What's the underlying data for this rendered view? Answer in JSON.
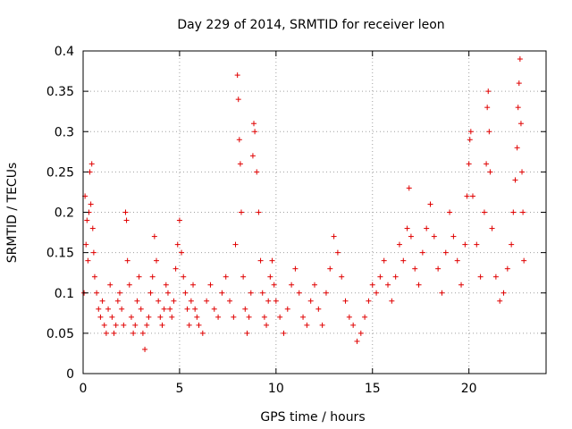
{
  "chart_data": {
    "type": "scatter",
    "title": "Day 229 of 2014, SRMTID for receiver leon",
    "xlabel": "GPS time / hours",
    "ylabel": "SRMTID / TECUs",
    "xlim": [
      0,
      24
    ],
    "ylim": [
      0,
      0.4
    ],
    "grid": true,
    "marker": "+",
    "marker_color": "#e00000",
    "x_ticks": [
      0,
      5,
      10,
      15,
      20
    ],
    "x_tick_labels": [
      "0",
      "5",
      "10",
      "15",
      "20"
    ],
    "y_ticks": [
      0,
      0.05,
      0.1,
      0.15,
      0.2,
      0.25,
      0.3,
      0.35,
      0.4
    ],
    "y_tick_labels": [
      "0",
      "0.05",
      "0.1",
      "0.15",
      "0.2",
      "0.25",
      "0.3",
      "0.35",
      "0.4"
    ],
    "series": [
      {
        "name": "SRMTID",
        "points": [
          [
            0.05,
            0.1
          ],
          [
            0.1,
            0.22
          ],
          [
            0.15,
            0.16
          ],
          [
            0.2,
            0.19
          ],
          [
            0.25,
            0.14
          ],
          [
            0.3,
            0.2
          ],
          [
            0.35,
            0.25
          ],
          [
            0.4,
            0.21
          ],
          [
            0.45,
            0.26
          ],
          [
            0.5,
            0.18
          ],
          [
            0.55,
            0.15
          ],
          [
            0.6,
            0.12
          ],
          [
            0.7,
            0.1
          ],
          [
            0.8,
            0.08
          ],
          [
            0.9,
            0.07
          ],
          [
            1.0,
            0.09
          ],
          [
            1.1,
            0.06
          ],
          [
            1.2,
            0.05
          ],
          [
            1.3,
            0.08
          ],
          [
            1.4,
            0.11
          ],
          [
            1.5,
            0.07
          ],
          [
            1.6,
            0.05
          ],
          [
            1.7,
            0.06
          ],
          [
            1.8,
            0.09
          ],
          [
            1.9,
            0.1
          ],
          [
            2.0,
            0.08
          ],
          [
            2.1,
            0.06
          ],
          [
            2.2,
            0.2
          ],
          [
            2.25,
            0.19
          ],
          [
            2.3,
            0.14
          ],
          [
            2.4,
            0.11
          ],
          [
            2.5,
            0.07
          ],
          [
            2.6,
            0.05
          ],
          [
            2.7,
            0.06
          ],
          [
            2.8,
            0.09
          ],
          [
            2.9,
            0.12
          ],
          [
            3.0,
            0.08
          ],
          [
            3.1,
            0.05
          ],
          [
            3.2,
            0.03
          ],
          [
            3.3,
            0.06
          ],
          [
            3.4,
            0.07
          ],
          [
            3.5,
            0.1
          ],
          [
            3.6,
            0.12
          ],
          [
            3.7,
            0.17
          ],
          [
            3.8,
            0.14
          ],
          [
            3.9,
            0.09
          ],
          [
            4.0,
            0.07
          ],
          [
            4.1,
            0.06
          ],
          [
            4.2,
            0.08
          ],
          [
            4.3,
            0.11
          ],
          [
            4.4,
            0.1
          ],
          [
            4.5,
            0.08
          ],
          [
            4.6,
            0.07
          ],
          [
            4.7,
            0.09
          ],
          [
            4.8,
            0.13
          ],
          [
            4.9,
            0.16
          ],
          [
            5.0,
            0.19
          ],
          [
            5.1,
            0.15
          ],
          [
            5.2,
            0.12
          ],
          [
            5.3,
            0.1
          ],
          [
            5.4,
            0.08
          ],
          [
            5.5,
            0.06
          ],
          [
            5.6,
            0.09
          ],
          [
            5.7,
            0.11
          ],
          [
            5.8,
            0.08
          ],
          [
            5.9,
            0.07
          ],
          [
            6.0,
            0.06
          ],
          [
            6.2,
            0.05
          ],
          [
            6.4,
            0.09
          ],
          [
            6.6,
            0.11
          ],
          [
            6.8,
            0.08
          ],
          [
            7.0,
            0.07
          ],
          [
            7.2,
            0.1
          ],
          [
            7.4,
            0.12
          ],
          [
            7.6,
            0.09
          ],
          [
            7.8,
            0.07
          ],
          [
            7.9,
            0.16
          ],
          [
            8.0,
            0.37
          ],
          [
            8.05,
            0.34
          ],
          [
            8.1,
            0.29
          ],
          [
            8.15,
            0.26
          ],
          [
            8.2,
            0.2
          ],
          [
            8.3,
            0.12
          ],
          [
            8.4,
            0.08
          ],
          [
            8.5,
            0.05
          ],
          [
            8.6,
            0.07
          ],
          [
            8.7,
            0.1
          ],
          [
            8.8,
            0.27
          ],
          [
            8.85,
            0.31
          ],
          [
            8.9,
            0.3
          ],
          [
            9.0,
            0.25
          ],
          [
            9.1,
            0.2
          ],
          [
            9.2,
            0.14
          ],
          [
            9.3,
            0.1
          ],
          [
            9.4,
            0.07
          ],
          [
            9.5,
            0.06
          ],
          [
            9.6,
            0.09
          ],
          [
            9.7,
            0.12
          ],
          [
            9.8,
            0.14
          ],
          [
            9.9,
            0.11
          ],
          [
            10.0,
            0.09
          ],
          [
            10.2,
            0.07
          ],
          [
            10.4,
            0.05
          ],
          [
            10.6,
            0.08
          ],
          [
            10.8,
            0.11
          ],
          [
            11.0,
            0.13
          ],
          [
            11.2,
            0.1
          ],
          [
            11.4,
            0.07
          ],
          [
            11.6,
            0.06
          ],
          [
            11.8,
            0.09
          ],
          [
            12.0,
            0.11
          ],
          [
            12.2,
            0.08
          ],
          [
            12.4,
            0.06
          ],
          [
            12.6,
            0.1
          ],
          [
            12.8,
            0.13
          ],
          [
            13.0,
            0.17
          ],
          [
            13.2,
            0.15
          ],
          [
            13.4,
            0.12
          ],
          [
            13.6,
            0.09
          ],
          [
            13.8,
            0.07
          ],
          [
            14.0,
            0.06
          ],
          [
            14.2,
            0.04
          ],
          [
            14.4,
            0.05
          ],
          [
            14.6,
            0.07
          ],
          [
            14.8,
            0.09
          ],
          [
            15.0,
            0.11
          ],
          [
            15.2,
            0.1
          ],
          [
            15.4,
            0.12
          ],
          [
            15.6,
            0.14
          ],
          [
            15.8,
            0.11
          ],
          [
            16.0,
            0.09
          ],
          [
            16.2,
            0.12
          ],
          [
            16.4,
            0.16
          ],
          [
            16.6,
            0.14
          ],
          [
            16.8,
            0.18
          ],
          [
            16.9,
            0.23
          ],
          [
            17.0,
            0.17
          ],
          [
            17.2,
            0.13
          ],
          [
            17.4,
            0.11
          ],
          [
            17.6,
            0.15
          ],
          [
            17.8,
            0.18
          ],
          [
            18.0,
            0.21
          ],
          [
            18.2,
            0.17
          ],
          [
            18.4,
            0.13
          ],
          [
            18.6,
            0.1
          ],
          [
            18.8,
            0.15
          ],
          [
            19.0,
            0.2
          ],
          [
            19.2,
            0.17
          ],
          [
            19.4,
            0.14
          ],
          [
            19.6,
            0.11
          ],
          [
            19.8,
            0.16
          ],
          [
            19.9,
            0.22
          ],
          [
            20.0,
            0.26
          ],
          [
            20.05,
            0.29
          ],
          [
            20.1,
            0.3
          ],
          [
            20.2,
            0.22
          ],
          [
            20.4,
            0.16
          ],
          [
            20.6,
            0.12
          ],
          [
            20.8,
            0.2
          ],
          [
            20.9,
            0.26
          ],
          [
            20.95,
            0.33
          ],
          [
            21.0,
            0.35
          ],
          [
            21.05,
            0.3
          ],
          [
            21.1,
            0.25
          ],
          [
            21.2,
            0.18
          ],
          [
            21.4,
            0.12
          ],
          [
            21.6,
            0.09
          ],
          [
            21.8,
            0.1
          ],
          [
            22.0,
            0.13
          ],
          [
            22.2,
            0.16
          ],
          [
            22.3,
            0.2
          ],
          [
            22.4,
            0.24
          ],
          [
            22.5,
            0.28
          ],
          [
            22.55,
            0.33
          ],
          [
            22.6,
            0.36
          ],
          [
            22.65,
            0.39
          ],
          [
            22.7,
            0.31
          ],
          [
            22.75,
            0.25
          ],
          [
            22.8,
            0.2
          ],
          [
            22.85,
            0.14
          ]
        ]
      }
    ]
  }
}
